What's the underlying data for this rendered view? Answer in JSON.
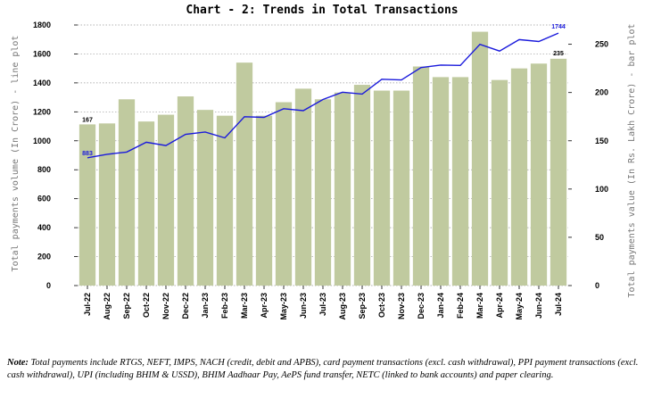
{
  "chart_data": {
    "type": "bar+line",
    "title": "Chart - 2: Trends in Total Transactions",
    "categories": [
      "Jul-22",
      "Aug-22",
      "Sep-22",
      "Oct-22",
      "Nov-22",
      "Dec-22",
      "Jan-23",
      "Feb-23",
      "Mar-23",
      "Apr-23",
      "May-23",
      "Jun-23",
      "Jul-23",
      "Aug-23",
      "Sep-23",
      "Oct-23",
      "Nov-23",
      "Dec-23",
      "Jan-24",
      "Feb-24",
      "Mar-24",
      "Apr-24",
      "May-24",
      "Jun-24",
      "Jul-24"
    ],
    "bar_series": {
      "name": "Total payments value (In Rs. Lakh Crore) - bar plot",
      "axis": "right",
      "values": [
        167,
        168,
        193,
        170,
        177,
        196,
        182,
        176,
        231,
        176,
        190,
        204,
        193,
        200,
        208,
        202,
        202,
        227,
        216,
        216,
        263,
        213,
        225,
        230,
        235
      ],
      "labels": {
        "first": "167",
        "last": "235"
      },
      "color": "#c0ca9f"
    },
    "line_series": {
      "name": "Total payments volume (In Crore) - line plot",
      "axis": "left",
      "values": [
        883,
        907,
        922,
        990,
        967,
        1045,
        1061,
        1020,
        1166,
        1162,
        1222,
        1208,
        1285,
        1336,
        1323,
        1425,
        1420,
        1506,
        1523,
        1521,
        1666,
        1620,
        1699,
        1686,
        1744
      ],
      "labels": {
        "first": "883",
        "last": "1744"
      },
      "color": "#1a1adc"
    },
    "y_left": {
      "label": "Total payments volume (In Crore) - line plot",
      "range": [
        0,
        1800
      ],
      "ticks": [
        "0",
        "200",
        "400",
        "600",
        "800",
        "1000",
        "1200",
        "1400",
        "1600",
        "1800"
      ]
    },
    "y_right": {
      "label": "Total payments value (In Rs. Lakh Crore) - bar plot",
      "range": [
        0,
        270
      ],
      "ticks": [
        "0",
        "50",
        "100",
        "150",
        "200",
        "250"
      ]
    },
    "grid": true
  },
  "note": {
    "prefix": "Note:",
    "text": " Total payments include RTGS, NEFT, IMPS, NACH (credit, debit and APBS), card payment transactions (excl. cash withdrawal), PPI payment transactions (excl. cash withdrawal), UPI (including BHIM & USSD), BHIM Aadhaar Pay, AePS fund transfer, NETC (linked to bank accounts) and paper clearing."
  }
}
